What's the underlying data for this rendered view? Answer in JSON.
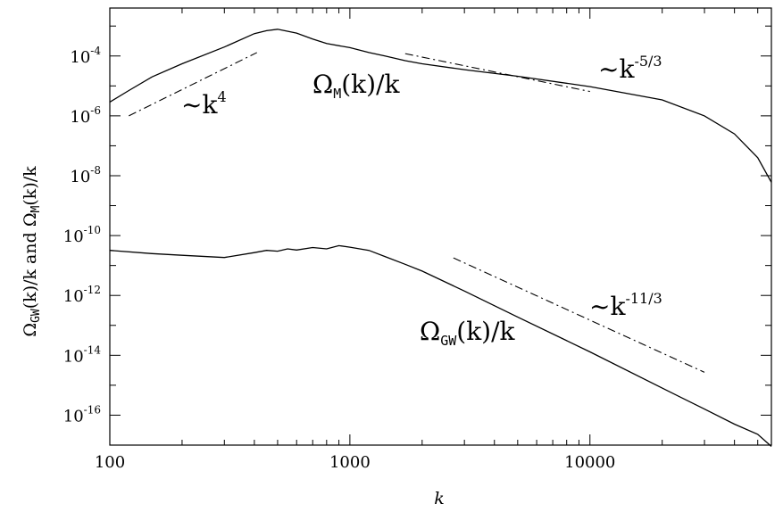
{
  "chart_data": {
    "type": "line",
    "xscale": "log",
    "yscale": "log",
    "xlim": [
      100,
      57000
    ],
    "ylim": [
      1e-17,
      0.004
    ],
    "xlabel": "k",
    "ylabel": {
      "part1": "Ω",
      "part1_sub": "GW",
      "part2": "(k)/k  and  Ω",
      "part2_sub": "M",
      "part3": "(k)/k"
    },
    "x_ticks": [
      {
        "value": 100,
        "label": "100"
      },
      {
        "value": 1000,
        "label": "1000"
      },
      {
        "value": 10000,
        "label": "10000"
      }
    ],
    "y_ticks": [
      {
        "value": 0.0001,
        "base": "10",
        "exp": "-4"
      },
      {
        "value": 1e-06,
        "base": "10",
        "exp": "-6"
      },
      {
        "value": 1e-08,
        "base": "10",
        "exp": "-8"
      },
      {
        "value": 1e-10,
        "base": "10",
        "exp": "-10"
      },
      {
        "value": 1e-12,
        "base": "10",
        "exp": "-12"
      },
      {
        "value": 1e-14,
        "base": "10",
        "exp": "-14"
      },
      {
        "value": 1e-16,
        "base": "10",
        "exp": "-16"
      }
    ],
    "series": [
      {
        "id": "omega_m",
        "x": [
          100,
          120,
          150,
          200,
          300,
          400,
          450,
          500,
          600,
          700,
          800,
          1000,
          1200,
          1400,
          1700,
          2000,
          3000,
          5000,
          10000,
          20000,
          30000,
          40000,
          50000,
          57000
        ],
        "y": [
          2.9e-06,
          7e-06,
          2e-05,
          5.5e-05,
          0.0002,
          0.00056,
          0.0007,
          0.00078,
          0.00058,
          0.00037,
          0.00026,
          0.00019,
          0.00013,
          0.0001,
          7e-05,
          5.5e-05,
          3.5e-05,
          2.1e-05,
          9.5e-06,
          3.4e-06,
          1e-06,
          2.5e-07,
          4e-08,
          6e-09
        ]
      },
      {
        "id": "omega_gw",
        "x": [
          100,
          150,
          200,
          300,
          400,
          450,
          500,
          550,
          600,
          700,
          800,
          900,
          1000,
          1200,
          1400,
          1700,
          2000,
          3000,
          5000,
          10000,
          20000,
          30000,
          40000,
          50000,
          57000
        ],
        "y": [
          3.2e-11,
          2.5e-11,
          2.2e-11,
          1.85e-11,
          2.7e-11,
          3.2e-11,
          3e-11,
          3.6e-11,
          3.3e-11,
          4e-11,
          3.6e-11,
          4.6e-11,
          4.1e-11,
          3.2e-11,
          2e-11,
          1.1e-11,
          6.5e-12,
          1.4e-12,
          1.9e-13,
          1.3e-14,
          8e-16,
          1.6e-16,
          5e-17,
          2.3e-17,
          9e-18
        ]
      }
    ],
    "guides": [
      {
        "id": "guide_k4",
        "x": [
          120,
          410
        ],
        "y": [
          1e-06,
          0.00013
        ]
      },
      {
        "id": "guide_k53",
        "x": [
          1700,
          10000
        ],
        "y": [
          0.00012,
          6.5e-06
        ]
      },
      {
        "id": "guide_k113",
        "x": [
          2700,
          30000
        ],
        "y": [
          1.8e-11,
          2.7e-15
        ]
      }
    ],
    "annotations": {
      "k4": {
        "prefix": "~k",
        "exp": "4"
      },
      "k53": {
        "prefix": "~k",
        "exp": "-5/3"
      },
      "k113": {
        "prefix": "~k",
        "exp": "-11/3"
      },
      "omega_m_label": {
        "omega": "Ω",
        "sub": "M",
        "rest": "(k)/k"
      },
      "omega_gw_label": {
        "omega": "Ω",
        "sub": "GW",
        "rest": "(k)/k"
      }
    }
  }
}
